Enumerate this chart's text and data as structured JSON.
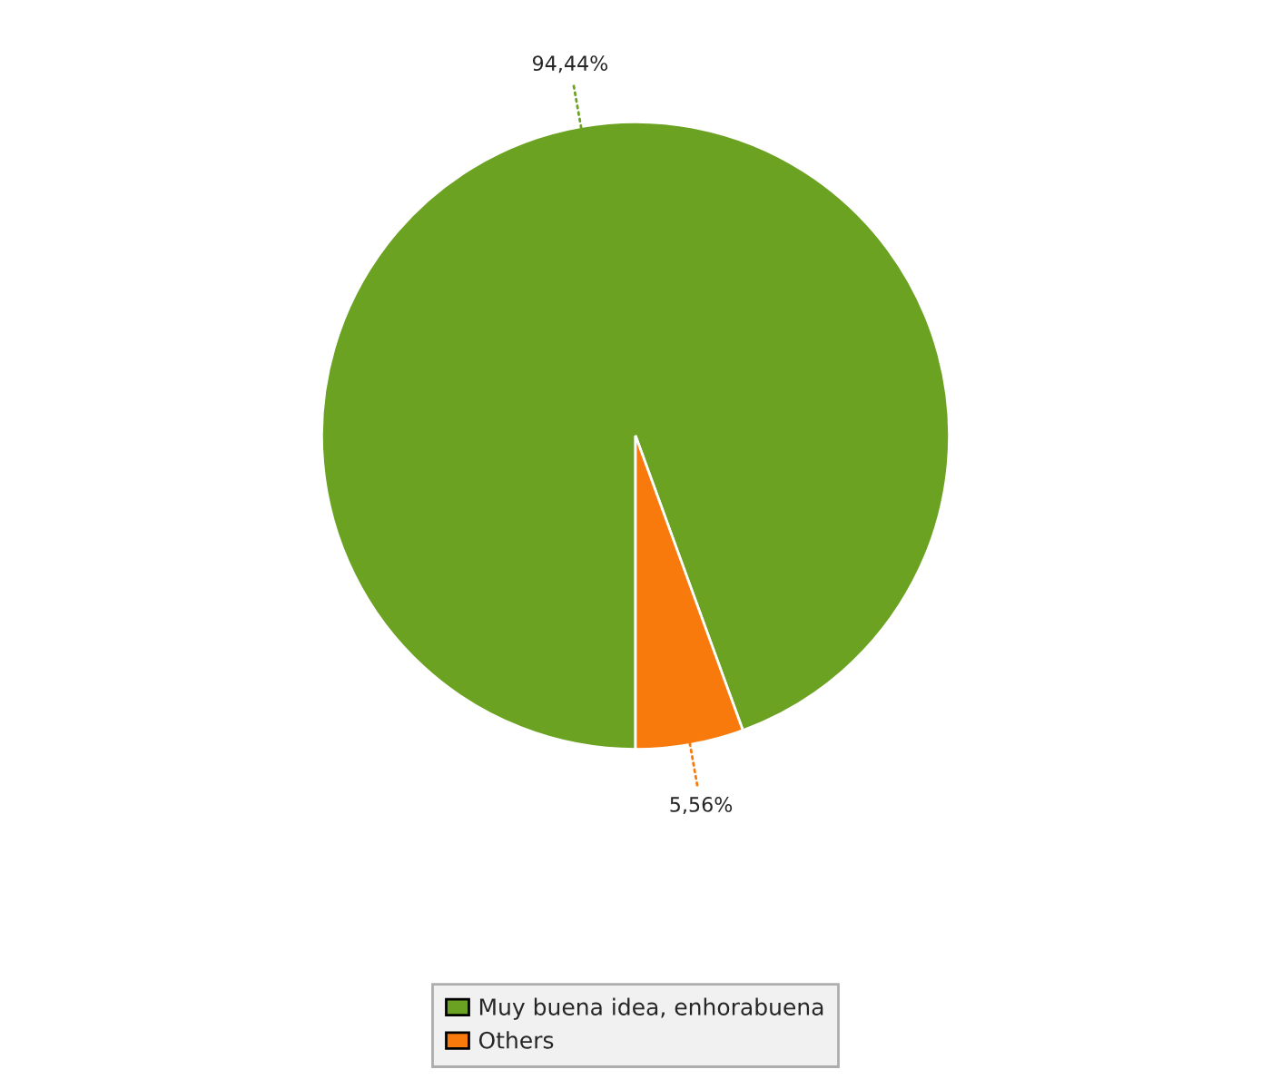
{
  "chart_data": {
    "type": "pie",
    "categories": [
      "Muy buena idea, enhorabuena",
      "Others"
    ],
    "values": [
      94.44,
      5.56
    ],
    "value_labels": [
      "94,44%",
      "5,56%"
    ],
    "colors": [
      "#6ca222",
      "#f97a0c"
    ],
    "legend": "bottom"
  }
}
